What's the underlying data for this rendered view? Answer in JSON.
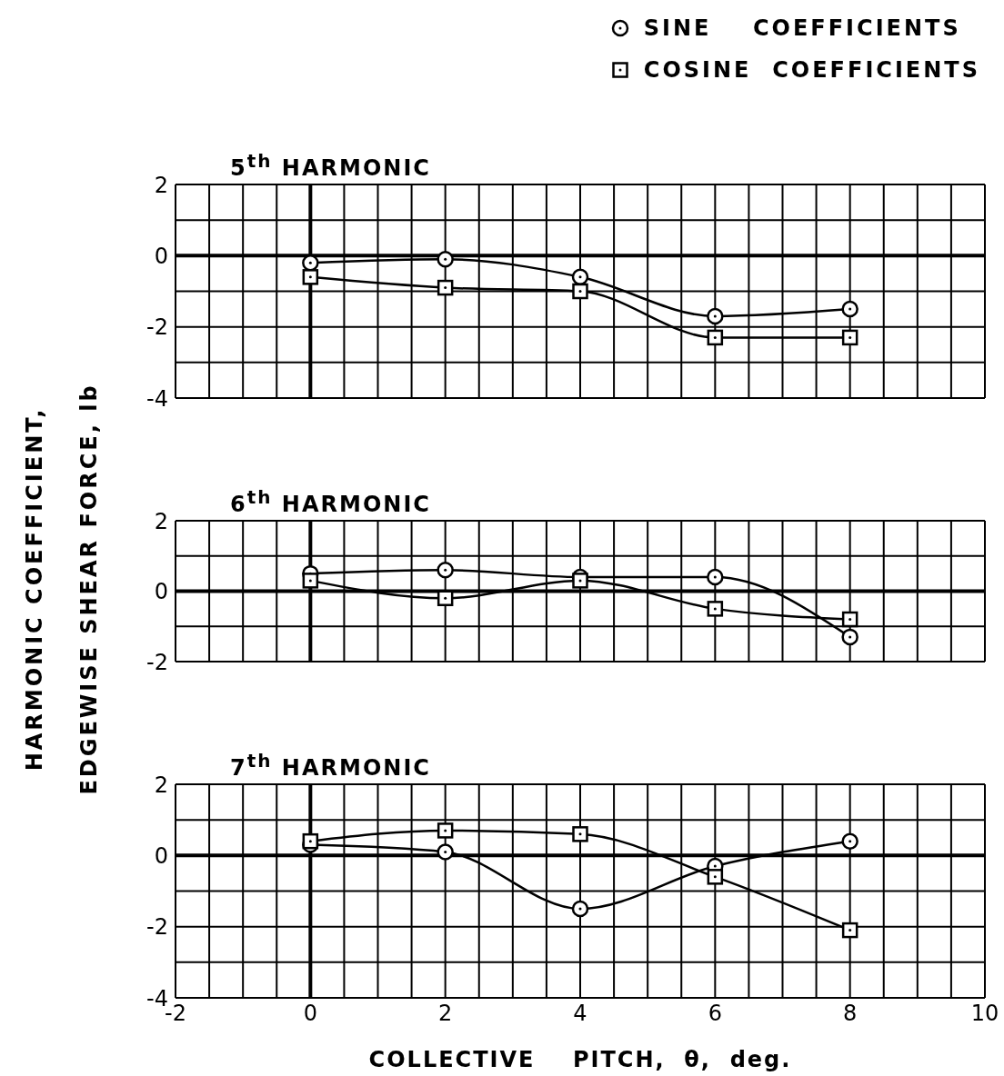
{
  "chart_data": [
    {
      "type": "line",
      "title": "5$^{th}$ HARMONIC",
      "ylabel": "HARMONIC COEFFICIENT,\nEDGEWISE SHEAR FORCE, lb",
      "legend": "top right",
      "grid": true,
      "tick_labels": "y",
      "xlim": [
        -2,
        10
      ],
      "xticks": [
        {
          "value": -2,
          "label": null
        },
        {
          "value": -1.5,
          "label": null
        },
        {
          "value": -1,
          "label": null
        },
        {
          "value": -0.5,
          "label": null
        },
        {
          "value": 0,
          "label": null
        },
        {
          "value": 0.5,
          "label": null
        },
        {
          "value": 1,
          "label": null
        },
        {
          "value": 1.5,
          "label": null
        },
        {
          "value": 2,
          "label": null
        },
        {
          "value": 2.5,
          "label": null
        },
        {
          "value": 3,
          "label": null
        },
        {
          "value": 3.5,
          "label": null
        },
        {
          "value": 4,
          "label": null
        },
        {
          "value": 4.5,
          "label": null
        },
        {
          "value": 5,
          "label": null
        },
        {
          "value": 5.5,
          "label": null
        },
        {
          "value": 6,
          "label": null
        },
        {
          "value": 6.5,
          "label": null
        },
        {
          "value": 7,
          "label": null
        },
        {
          "value": 7.5,
          "label": null
        },
        {
          "value": 8,
          "label": null
        },
        {
          "value": 8.5,
          "label": null
        },
        {
          "value": 9,
          "label": null
        },
        {
          "value": 9.5,
          "label": null
        },
        {
          "value": 10,
          "label": null
        }
      ],
      "ylim": [
        -4,
        2
      ],
      "yticks": [
        -4,
        {
          "value": -3,
          "label": null
        },
        -2,
        {
          "value": -1,
          "label": null
        },
        0,
        {
          "value": 1,
          "label": null
        },
        2
      ],
      "x": [
        0,
        2,
        4,
        6,
        8
      ],
      "series": [
        {
          "name": "SINE    COEFFICIENTS",
          "color": "#000000",
          "marker": "circle",
          "values": [
            -0.2,
            -0.1,
            -0.6,
            -1.7,
            -1.5
          ]
        },
        {
          "name": "COSINE  COEFFICIENTS",
          "color": "#000000",
          "marker": "square",
          "values": [
            -0.6,
            -0.9,
            -1.0,
            -2.3,
            -2.3
          ]
        }
      ]
    },
    {
      "type": "line",
      "title": "6$^{th}$ HARMONIC",
      "grid": true,
      "tick_labels": "y",
      "xlim": [
        -2,
        10
      ],
      "xticks": [
        {
          "value": -2,
          "label": null
        },
        {
          "value": -1.5,
          "label": null
        },
        {
          "value": -1,
          "label": null
        },
        {
          "value": -0.5,
          "label": null
        },
        {
          "value": 0,
          "label": null
        },
        {
          "value": 0.5,
          "label": null
        },
        {
          "value": 1,
          "label": null
        },
        {
          "value": 1.5,
          "label": null
        },
        {
          "value": 2,
          "label": null
        },
        {
          "value": 2.5,
          "label": null
        },
        {
          "value": 3,
          "label": null
        },
        {
          "value": 3.5,
          "label": null
        },
        {
          "value": 4,
          "label": null
        },
        {
          "value": 4.5,
          "label": null
        },
        {
          "value": 5,
          "label": null
        },
        {
          "value": 5.5,
          "label": null
        },
        {
          "value": 6,
          "label": null
        },
        {
          "value": 6.5,
          "label": null
        },
        {
          "value": 7,
          "label": null
        },
        {
          "value": 7.5,
          "label": null
        },
        {
          "value": 8,
          "label": null
        },
        {
          "value": 8.5,
          "label": null
        },
        {
          "value": 9,
          "label": null
        },
        {
          "value": 9.5,
          "label": null
        },
        {
          "value": 10,
          "label": null
        }
      ],
      "ylim": [
        -2,
        2
      ],
      "yticks": [
        -2,
        {
          "value": -1,
          "label": null
        },
        0,
        {
          "value": 1,
          "label": null
        },
        2
      ],
      "x": [
        0,
        2,
        4,
        6,
        8
      ],
      "series": [
        {
          "color": "#000000",
          "marker": "circle",
          "values": [
            0.5,
            0.6,
            0.4,
            0.4,
            -1.3
          ]
        },
        {
          "color": "#000000",
          "marker": "square",
          "values": [
            0.3,
            -0.2,
            0.3,
            -0.5,
            -0.8
          ]
        }
      ]
    },
    {
      "type": "line",
      "title": "7$^{th}$ HARMONIC",
      "xlabel": "COLLECTIVE    PITCH,  θ,  deg.",
      "grid": true,
      "xlim": [
        -2,
        10
      ],
      "xticks": [
        -2,
        {
          "value": -1.5,
          "label": null
        },
        {
          "value": -1,
          "label": null
        },
        {
          "value": -0.5,
          "label": null
        },
        0,
        {
          "value": 0.5,
          "label": null
        },
        {
          "value": 1,
          "label": null
        },
        {
          "value": 1.5,
          "label": null
        },
        2,
        {
          "value": 2.5,
          "label": null
        },
        {
          "value": 3,
          "label": null
        },
        {
          "value": 3.5,
          "label": null
        },
        4,
        {
          "value": 4.5,
          "label": null
        },
        {
          "value": 5,
          "label": null
        },
        {
          "value": 5.5,
          "label": null
        },
        6,
        {
          "value": 6.5,
          "label": null
        },
        {
          "value": 7,
          "label": null
        },
        {
          "value": 7.5,
          "label": null
        },
        8,
        {
          "value": 8.5,
          "label": null
        },
        {
          "value": 9,
          "label": null
        },
        {
          "value": 9.5,
          "label": null
        },
        10
      ],
      "ylim": [
        -4,
        2
      ],
      "yticks": [
        -4,
        {
          "value": -3,
          "label": null
        },
        -2,
        {
          "value": -1,
          "label": null
        },
        0,
        {
          "value": 1,
          "label": null
        },
        2
      ],
      "x": [
        0,
        2,
        4,
        6,
        8
      ],
      "series": [
        {
          "color": "#000000",
          "marker": "circle",
          "values": [
            0.3,
            0.1,
            -1.5,
            -0.3,
            0.4
          ]
        },
        {
          "color": "#000000",
          "marker": "square",
          "values": [
            0.4,
            0.7,
            0.6,
            -0.6,
            -2.1
          ]
        }
      ]
    }
  ]
}
